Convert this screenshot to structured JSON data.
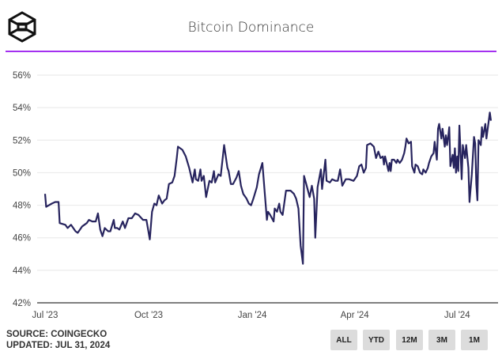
{
  "header": {
    "title": "Bitcoin Dominance",
    "accent_color": "#a430f0",
    "logo_icon": "hexagon-cube-logo"
  },
  "footer": {
    "source": "SOURCE: COINGECKO",
    "updated": "UPDATED: JUL 31, 2024"
  },
  "range_buttons": [
    {
      "label": "ALL"
    },
    {
      "label": "YTD"
    },
    {
      "label": "12M"
    },
    {
      "label": "3M"
    },
    {
      "label": "1M"
    }
  ],
  "chart_data": {
    "type": "line",
    "title": "Bitcoin Dominance",
    "xlabel": "",
    "ylabel": "",
    "ylim": [
      42,
      56
    ],
    "xlim": [
      "2023-07-01",
      "2024-07-31"
    ],
    "y_ticks": [
      "42%",
      "44%",
      "46%",
      "48%",
      "50%",
      "52%",
      "54%",
      "56%"
    ],
    "y_tick_values": [
      42,
      44,
      46,
      48,
      50,
      52,
      54,
      56
    ],
    "x_ticks": [
      {
        "label": "Jul '23",
        "date": "2023-07-01"
      },
      {
        "label": "Oct '23",
        "date": "2023-10-01"
      },
      {
        "label": "Jan '24",
        "date": "2024-01-01"
      },
      {
        "label": "Apr '24",
        "date": "2024-04-01"
      },
      {
        "label": "Jul '24",
        "date": "2024-07-01"
      }
    ],
    "grid": true,
    "line_color": "#27245e",
    "series": [
      {
        "points": [
          [
            "2023-07-01",
            48.7
          ],
          [
            "2023-07-02",
            47.9
          ],
          [
            "2023-07-07",
            48.1
          ],
          [
            "2023-07-10",
            48.2
          ],
          [
            "2023-07-13",
            48.2
          ],
          [
            "2023-07-14",
            46.9
          ],
          [
            "2023-07-19",
            46.8
          ],
          [
            "2023-07-21",
            46.6
          ],
          [
            "2023-07-24",
            46.8
          ],
          [
            "2023-07-28",
            46.4
          ],
          [
            "2023-07-30",
            46.3
          ],
          [
            "2023-08-03",
            46.7
          ],
          [
            "2023-08-07",
            46.9
          ],
          [
            "2023-08-09",
            47.1
          ],
          [
            "2023-08-12",
            47.0
          ],
          [
            "2023-08-15",
            47.0
          ],
          [
            "2023-08-17",
            47.5
          ],
          [
            "2023-08-19",
            46.5
          ],
          [
            "2023-08-21",
            46.1
          ],
          [
            "2023-08-23",
            46.6
          ],
          [
            "2023-08-26",
            46.4
          ],
          [
            "2023-08-28",
            46.4
          ],
          [
            "2023-08-31",
            47.1
          ],
          [
            "2023-09-01",
            46.6
          ],
          [
            "2023-09-03",
            46.6
          ],
          [
            "2023-09-05",
            46.5
          ],
          [
            "2023-09-08",
            47.0
          ],
          [
            "2023-09-10",
            46.6
          ],
          [
            "2023-09-13",
            47.2
          ],
          [
            "2023-09-16",
            47.2
          ],
          [
            "2023-09-19",
            47.5
          ],
          [
            "2023-09-22",
            47.4
          ],
          [
            "2023-09-26",
            47.1
          ],
          [
            "2023-09-29",
            47.1
          ],
          [
            "2023-10-02",
            45.9
          ],
          [
            "2023-10-04",
            47.6
          ],
          [
            "2023-10-06",
            48.1
          ],
          [
            "2023-10-08",
            48.0
          ],
          [
            "2023-10-10",
            48.6
          ],
          [
            "2023-10-13",
            48.1
          ],
          [
            "2023-10-15",
            48.3
          ],
          [
            "2023-10-17",
            48.4
          ],
          [
            "2023-10-19",
            49.3
          ],
          [
            "2023-10-22",
            49.4
          ],
          [
            "2023-10-24",
            49.8
          ],
          [
            "2023-10-26",
            50.9
          ],
          [
            "2023-10-27",
            51.6
          ],
          [
            "2023-10-31",
            51.4
          ],
          [
            "2023-11-03",
            51.0
          ],
          [
            "2023-11-06",
            50.3
          ],
          [
            "2023-11-09",
            49.4
          ],
          [
            "2023-11-11",
            50.2
          ],
          [
            "2023-11-12",
            49.6
          ],
          [
            "2023-11-14",
            49.5
          ],
          [
            "2023-11-16",
            50.2
          ],
          [
            "2023-11-17",
            49.5
          ],
          [
            "2023-11-19",
            49.8
          ],
          [
            "2023-11-21",
            48.5
          ],
          [
            "2023-11-24",
            49.5
          ],
          [
            "2023-11-26",
            49.4
          ],
          [
            "2023-11-28",
            50.1
          ],
          [
            "2023-11-29",
            49.4
          ],
          [
            "2023-12-02",
            49.9
          ],
          [
            "2023-12-04",
            49.8
          ],
          [
            "2023-12-07",
            51.7
          ],
          [
            "2023-12-10",
            50.3
          ],
          [
            "2023-12-11",
            50.1
          ],
          [
            "2023-12-13",
            49.3
          ],
          [
            "2023-12-15",
            49.3
          ],
          [
            "2023-12-18",
            49.7
          ],
          [
            "2023-12-20",
            50.1
          ],
          [
            "2023-12-22",
            49.2
          ],
          [
            "2023-12-24",
            48.7
          ],
          [
            "2023-12-27",
            48.4
          ],
          [
            "2023-12-29",
            48.1
          ],
          [
            "2023-12-31",
            48.0
          ],
          [
            "2024-01-02",
            48.4
          ],
          [
            "2024-01-05",
            49.1
          ],
          [
            "2024-01-07",
            49.9
          ],
          [
            "2024-01-10",
            50.6
          ],
          [
            "2024-01-14",
            47.1
          ],
          [
            "2024-01-15",
            47.6
          ],
          [
            "2024-01-17",
            47.4
          ],
          [
            "2024-01-20",
            47.0
          ],
          [
            "2024-01-21",
            47.8
          ],
          [
            "2024-01-23",
            47.6
          ],
          [
            "2024-01-25",
            48.1
          ],
          [
            "2024-01-26",
            47.6
          ],
          [
            "2024-01-28",
            47.4
          ],
          [
            "2024-01-31",
            48.9
          ],
          [
            "2024-02-04",
            48.9
          ],
          [
            "2024-02-07",
            48.7
          ],
          [
            "2024-02-09",
            48.4
          ],
          [
            "2024-02-11",
            47.8
          ],
          [
            "2024-02-13",
            45.5
          ],
          [
            "2024-02-15",
            44.4
          ],
          [
            "2024-02-16",
            49.8
          ],
          [
            "2024-02-18",
            49.3
          ],
          [
            "2024-02-21",
            48.5
          ],
          [
            "2024-02-23",
            49.2
          ],
          [
            "2024-02-25",
            48.4
          ],
          [
            "2024-02-26",
            46.0
          ],
          [
            "2024-02-28",
            49.1
          ],
          [
            "2024-03-02",
            50.2
          ],
          [
            "2024-03-03",
            49.0
          ],
          [
            "2024-03-06",
            50.8
          ],
          [
            "2024-03-07",
            49.5
          ],
          [
            "2024-03-10",
            49.4
          ],
          [
            "2024-03-12",
            49.6
          ],
          [
            "2024-03-15",
            49.5
          ],
          [
            "2024-03-17",
            49.5
          ],
          [
            "2024-03-19",
            50.2
          ],
          [
            "2024-03-21",
            49.2
          ],
          [
            "2024-03-24",
            49.6
          ],
          [
            "2024-03-27",
            49.6
          ],
          [
            "2024-03-31",
            49.5
          ],
          [
            "2024-04-03",
            49.8
          ],
          [
            "2024-04-05",
            50.4
          ],
          [
            "2024-04-07",
            50.5
          ],
          [
            "2024-04-09",
            50.0
          ],
          [
            "2024-04-11",
            50.3
          ],
          [
            "2024-04-12",
            51.7
          ],
          [
            "2024-04-15",
            51.8
          ],
          [
            "2024-04-18",
            51.6
          ],
          [
            "2024-04-20",
            50.9
          ],
          [
            "2024-04-22",
            51.3
          ],
          [
            "2024-04-24",
            50.9
          ],
          [
            "2024-04-26",
            51.0
          ],
          [
            "2024-04-27",
            50.5
          ],
          [
            "2024-04-28",
            51.0
          ],
          [
            "2024-05-01",
            50.1
          ],
          [
            "2024-05-02",
            50.6
          ],
          [
            "2024-05-03",
            50.1
          ],
          [
            "2024-05-04",
            50.8
          ],
          [
            "2024-05-06",
            50.8
          ],
          [
            "2024-05-08",
            50.6
          ],
          [
            "2024-05-09",
            50.8
          ],
          [
            "2024-05-11",
            50.6
          ],
          [
            "2024-05-13",
            50.8
          ],
          [
            "2024-05-15",
            51.2
          ],
          [
            "2024-05-16",
            51.6
          ],
          [
            "2024-05-17",
            52.1
          ],
          [
            "2024-05-19",
            51.8
          ],
          [
            "2024-05-21",
            51.9
          ],
          [
            "2024-05-22",
            50.4
          ],
          [
            "2024-05-24",
            50.0
          ],
          [
            "2024-05-25",
            50.5
          ],
          [
            "2024-05-27",
            50.4
          ],
          [
            "2024-05-29",
            50.0
          ],
          [
            "2024-05-31",
            49.9
          ],
          [
            "2024-06-01",
            50.2
          ],
          [
            "2024-06-03",
            50.0
          ],
          [
            "2024-06-05",
            50.3
          ],
          [
            "2024-06-06",
            50.6
          ],
          [
            "2024-06-08",
            51.0
          ],
          [
            "2024-06-10",
            51.2
          ],
          [
            "2024-06-11",
            51.9
          ],
          [
            "2024-06-13",
            50.8
          ],
          [
            "2024-06-14",
            52.7
          ],
          [
            "2024-06-15",
            53.0
          ],
          [
            "2024-06-17",
            52.1
          ],
          [
            "2024-06-18",
            52.7
          ],
          [
            "2024-06-20",
            51.6
          ],
          [
            "2024-06-21",
            52.3
          ],
          [
            "2024-06-22",
            51.7
          ],
          [
            "2024-06-23",
            52.2
          ],
          [
            "2024-06-24",
            52.8
          ],
          [
            "2024-06-25",
            50.4
          ],
          [
            "2024-06-27",
            51.1
          ],
          [
            "2024-06-28",
            50.3
          ],
          [
            "2024-06-29",
            51.5
          ],
          [
            "2024-06-30",
            50.0
          ],
          [
            "2024-07-01",
            51.0
          ],
          [
            "2024-07-02",
            50.1
          ],
          [
            "2024-07-03",
            52.9
          ],
          [
            "2024-07-05",
            49.6
          ],
          [
            "2024-07-06",
            51.7
          ],
          [
            "2024-07-08",
            50.9
          ],
          [
            "2024-07-09",
            51.7
          ],
          [
            "2024-07-11",
            50.3
          ],
          [
            "2024-07-12",
            48.2
          ],
          [
            "2024-07-14",
            49.9
          ],
          [
            "2024-07-16",
            52.2
          ],
          [
            "2024-07-17",
            51.8
          ],
          [
            "2024-07-18",
            49.3
          ],
          [
            "2024-07-19",
            48.3
          ],
          [
            "2024-07-20",
            52.0
          ],
          [
            "2024-07-22",
            51.7
          ],
          [
            "2024-07-23",
            52.8
          ],
          [
            "2024-07-24",
            52.2
          ],
          [
            "2024-07-26",
            53.0
          ],
          [
            "2024-07-27",
            52.1
          ],
          [
            "2024-07-30",
            53.7
          ],
          [
            "2024-07-31",
            53.2
          ]
        ]
      }
    ]
  }
}
